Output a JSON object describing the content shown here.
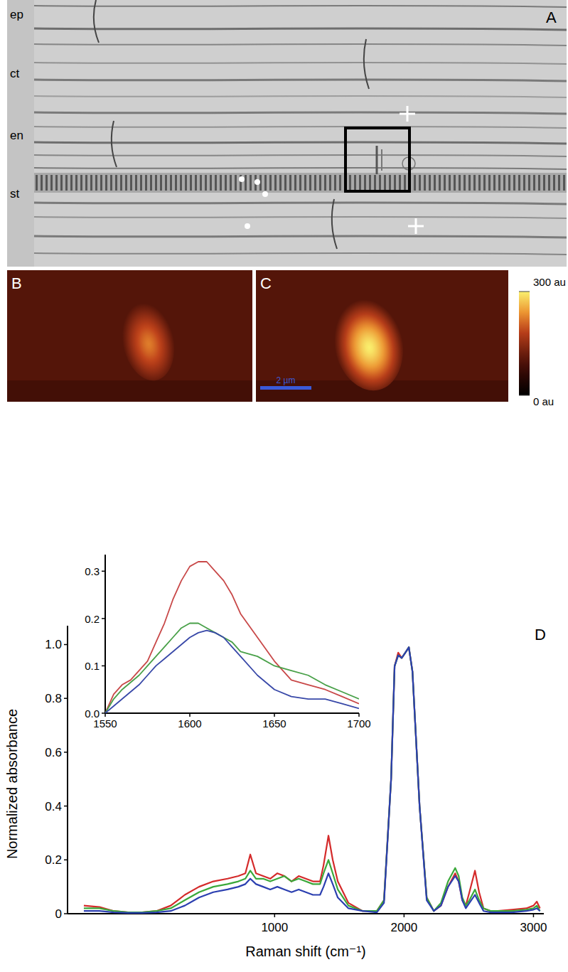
{
  "chart_data": [
    {
      "type": "line",
      "panel_label": "D",
      "x_label": "Raman shift (cm⁻¹)",
      "y_label": "Normalized absorbance",
      "xlim": [
        -600,
        3080
      ],
      "xticks": [
        1000,
        2000,
        3000
      ],
      "ylim": [
        0,
        1.07
      ],
      "yticks": [
        0,
        0.2,
        0.4,
        0.6,
        0.8,
        {
          "value": 1,
          "label": "1.0"
        }
      ],
      "x": [
        -474,
        -353,
        -243,
        -133,
        -23,
        87,
        197,
        306,
        416,
        526,
        636,
        720,
        774,
        812,
        856,
        911,
        966,
        1021,
        1076,
        1131,
        1186,
        1241,
        1296,
        1351,
        1378,
        1416,
        1449,
        1488,
        1570,
        1680,
        1790,
        1845,
        1900,
        1927,
        1955,
        1982,
        2010,
        2037,
        2065,
        2120,
        2175,
        2230,
        2285,
        2340,
        2395,
        2422,
        2450,
        2477,
        2505,
        2548,
        2580,
        2614,
        2670,
        2724,
        2834,
        2944,
        3000,
        3026,
        3050
      ],
      "series": [
        {
          "color": "#d42a2a",
          "values": [
            0.03,
            0.025,
            0.01,
            0.005,
            0.005,
            0.01,
            0.03,
            0.07,
            0.1,
            0.12,
            0.13,
            0.14,
            0.15,
            0.22,
            0.15,
            0.14,
            0.13,
            0.15,
            0.14,
            0.12,
            0.14,
            0.13,
            0.12,
            0.12,
            0.18,
            0.29,
            0.2,
            0.12,
            0.04,
            0.01,
            0.01,
            0.05,
            0.5,
            0.92,
            0.97,
            0.95,
            0.97,
            0.99,
            0.9,
            0.4,
            0.06,
            0.01,
            0.03,
            0.1,
            0.15,
            0.12,
            0.05,
            0.03,
            0.08,
            0.16,
            0.08,
            0.02,
            0.01,
            0.01,
            0.015,
            0.02,
            0.03,
            0.045,
            0.02
          ]
        },
        {
          "color": "#3aa83a",
          "values": [
            0.02,
            0.02,
            0.01,
            0.005,
            0.005,
            0.01,
            0.02,
            0.05,
            0.08,
            0.1,
            0.11,
            0.12,
            0.13,
            0.16,
            0.13,
            0.13,
            0.12,
            0.13,
            0.14,
            0.12,
            0.13,
            0.12,
            0.11,
            0.11,
            0.15,
            0.2,
            0.15,
            0.09,
            0.03,
            0.01,
            0.01,
            0.05,
            0.5,
            0.92,
            0.96,
            0.95,
            0.97,
            0.99,
            0.9,
            0.4,
            0.06,
            0.01,
            0.04,
            0.12,
            0.17,
            0.14,
            0.06,
            0.03,
            0.05,
            0.09,
            0.05,
            0.02,
            0.01,
            0.01,
            0.01,
            0.015,
            0.02,
            0.03,
            0.01
          ]
        },
        {
          "color": "#2b3fb0",
          "values": [
            0.01,
            0.01,
            0.005,
            0.003,
            0.003,
            0.005,
            0.01,
            0.03,
            0.06,
            0.08,
            0.09,
            0.1,
            0.11,
            0.13,
            0.11,
            0.1,
            0.09,
            0.1,
            0.09,
            0.08,
            0.09,
            0.08,
            0.07,
            0.07,
            0.1,
            0.15,
            0.11,
            0.06,
            0.02,
            0.01,
            0.005,
            0.04,
            0.5,
            0.92,
            0.96,
            0.95,
            0.97,
            0.99,
            0.9,
            0.4,
            0.05,
            0.01,
            0.03,
            0.1,
            0.14,
            0.12,
            0.05,
            0.02,
            0.04,
            0.07,
            0.04,
            0.01,
            0.005,
            0.005,
            0.005,
            0.01,
            0.015,
            0.02,
            0.01
          ]
        }
      ]
    },
    {
      "type": "line",
      "xlim": [
        1550,
        1700
      ],
      "xticks": [
        1550,
        1600,
        1650,
        1700
      ],
      "ylim": [
        0,
        0.335
      ],
      "yticks": [
        {
          "value": 0,
          "label": "0.0"
        },
        0.1,
        0.2,
        0.3
      ],
      "x": [
        1550,
        1555,
        1560,
        1565,
        1570,
        1575,
        1580,
        1585,
        1590,
        1595,
        1600,
        1605,
        1610,
        1615,
        1620,
        1625,
        1630,
        1640,
        1650,
        1660,
        1670,
        1680,
        1690,
        1700
      ],
      "series": [
        {
          "color": "#c84848",
          "values": [
            0,
            0.04,
            0.06,
            0.07,
            0.09,
            0.11,
            0.15,
            0.19,
            0.24,
            0.28,
            0.31,
            0.32,
            0.32,
            0.3,
            0.28,
            0.25,
            0.21,
            0.16,
            0.11,
            0.07,
            0.06,
            0.05,
            0.035,
            0.02
          ]
        },
        {
          "color": "#48a048",
          "values": [
            0,
            0.03,
            0.05,
            0.065,
            0.08,
            0.1,
            0.12,
            0.14,
            0.16,
            0.18,
            0.19,
            0.19,
            0.18,
            0.17,
            0.16,
            0.15,
            0.13,
            0.12,
            0.1,
            0.09,
            0.08,
            0.06,
            0.045,
            0.03
          ]
        },
        {
          "color": "#3848a8",
          "values": [
            0,
            0.015,
            0.03,
            0.045,
            0.06,
            0.08,
            0.1,
            0.115,
            0.13,
            0.145,
            0.16,
            0.17,
            0.175,
            0.17,
            0.16,
            0.14,
            0.12,
            0.08,
            0.05,
            0.035,
            0.03,
            0.03,
            0.02,
            0.01
          ]
        }
      ]
    }
  ],
  "micrograph": {
    "panel_label": "A",
    "layer_labels": [
      "ep",
      "ct",
      "en",
      "st"
    ]
  },
  "maps": [
    {
      "panel_label": "B",
      "background_intensity": 100,
      "peak_intensity": 225
    },
    {
      "panel_label": "C",
      "background_intensity": 100,
      "peak_intensity": 300,
      "scale_bar": "2 µm"
    }
  ],
  "colorbar": {
    "range": [
      0,
      300
    ],
    "ticks": [
      {
        "value": 300,
        "label": "300 au"
      },
      {
        "value": 0,
        "label": "0 au"
      }
    ]
  }
}
